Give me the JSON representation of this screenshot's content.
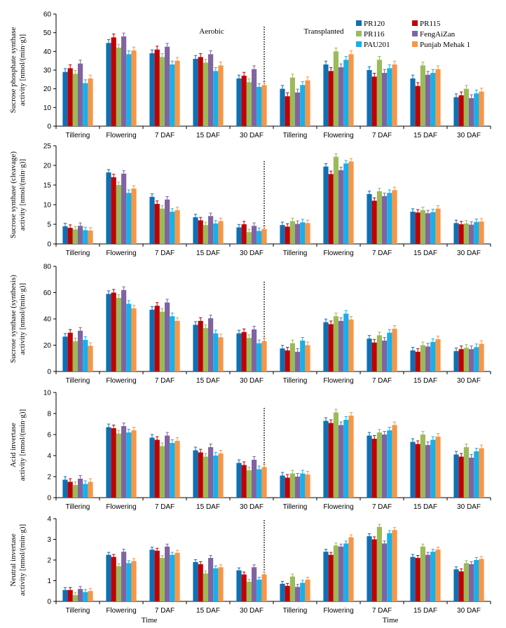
{
  "chart_data": [
    {
      "type": "bar",
      "ylabel": "Sucrose phosphate synthase activity [nmol/(min·g)]",
      "ylim": [
        0,
        60
      ],
      "yticks": [
        0,
        10,
        20,
        30,
        40,
        50,
        60
      ],
      "condition_labels": [
        "Aerobic",
        "Transplanted"
      ],
      "xlabel": "",
      "series": [
        {
          "name": "PR120",
          "values": [
            29,
            44.5,
            39,
            36,
            25.5,
            20,
            33,
            30,
            25.5,
            15.5
          ]
        },
        {
          "name": "PR115",
          "values": [
            31,
            47.5,
            41,
            37,
            27,
            16,
            29.5,
            26.5,
            21.5,
            16.5
          ]
        },
        {
          "name": "PR116",
          "values": [
            28,
            42,
            37,
            34,
            23.5,
            26,
            40,
            35.5,
            32.5,
            20
          ]
        },
        {
          "name": "FengAiZan",
          "values": [
            33.5,
            48,
            42.5,
            38.5,
            30.5,
            18,
            31.5,
            28.5,
            27.5,
            15
          ]
        },
        {
          "name": "PAU201",
          "values": [
            23,
            38.5,
            33,
            29.5,
            21,
            22,
            35.5,
            31,
            28.5,
            17.5
          ]
        },
        {
          "name": "Punjab Mehak 1",
          "values": [
            25.5,
            40.5,
            35,
            32.5,
            22,
            24.5,
            38.5,
            33,
            30.5,
            18.5
          ]
        }
      ]
    },
    {
      "type": "bar",
      "ylabel": "Sucrose synthase (cleavage) activity [nmol/(min·g)]",
      "ylim": [
        0,
        25
      ],
      "yticks": [
        0,
        5,
        10,
        15,
        20,
        25
      ],
      "condition_labels": [],
      "xlabel": "",
      "series": [
        {
          "name": "PR120",
          "values": [
            4.5,
            18.2,
            12,
            6.8,
            4.2,
            4.8,
            19.7,
            12.7,
            8.2,
            5.3
          ]
        },
        {
          "name": "PR115",
          "values": [
            4.1,
            17,
            10.2,
            6,
            5,
            4.4,
            17.8,
            11,
            8,
            5
          ]
        },
        {
          "name": "PR116",
          "values": [
            3.7,
            15,
            9,
            4.8,
            3,
            5.8,
            22.2,
            13.4,
            8.6,
            5.2
          ]
        },
        {
          "name": "FengAiZan",
          "values": [
            4.6,
            17.9,
            11.3,
            7.1,
            4.6,
            5.1,
            18.8,
            12.2,
            7.8,
            4.9
          ]
        },
        {
          "name": "PAU201",
          "values": [
            3.5,
            13,
            8.2,
            5.2,
            3.3,
            5.5,
            20.5,
            13,
            8.1,
            5.6
          ]
        },
        {
          "name": "Punjab Mehak 1",
          "values": [
            3.4,
            14.1,
            8.6,
            5.8,
            3.8,
            5.3,
            21,
            13.7,
            9,
            5.7
          ]
        }
      ]
    },
    {
      "type": "bar",
      "ylabel": "Sucrose synthase (synthesis) activity [nmol/(min·g)]",
      "ylim": [
        0,
        80
      ],
      "yticks": [
        0,
        20,
        40,
        60,
        80
      ],
      "condition_labels": [],
      "xlabel": "",
      "series": [
        {
          "name": "PR120",
          "values": [
            26.5,
            59,
            47,
            35.5,
            29,
            17.5,
            37.5,
            25,
            16,
            15.5
          ]
        },
        {
          "name": "PR115",
          "values": [
            29.5,
            60,
            50,
            38.5,
            30,
            16,
            36,
            22,
            15,
            17
          ]
        },
        {
          "name": "PR116",
          "values": [
            23,
            56,
            45.5,
            33,
            25.5,
            21.5,
            42,
            27.5,
            20,
            18
          ]
        },
        {
          "name": "FengAiZan",
          "values": [
            31,
            62,
            52.5,
            40.5,
            32,
            15,
            38.5,
            23.5,
            19,
            17
          ]
        },
        {
          "name": "PAU201",
          "values": [
            24,
            51.5,
            42,
            29,
            21.5,
            23.5,
            44,
            29.5,
            22.5,
            18.5
          ]
        },
        {
          "name": "Punjab Mehak 1",
          "values": [
            19.5,
            48,
            38.5,
            26,
            23,
            20,
            39.5,
            32.5,
            24.5,
            21
          ]
        }
      ]
    },
    {
      "type": "bar",
      "ylabel": "Acid invertase activity [nmol/(min·g)]",
      "ylim": [
        0,
        10
      ],
      "yticks": [
        0,
        2,
        4,
        6,
        8,
        10
      ],
      "condition_labels": [],
      "xlabel": "",
      "series": [
        {
          "name": "PR120",
          "values": [
            1.7,
            6.7,
            5.7,
            4.5,
            3.3,
            2.1,
            7.3,
            5.9,
            5.3,
            4.1
          ]
        },
        {
          "name": "PR115",
          "values": [
            1.5,
            6.6,
            5.5,
            4.3,
            3.1,
            1.9,
            7.1,
            5.6,
            5.1,
            3.9
          ]
        },
        {
          "name": "PR116",
          "values": [
            1.2,
            6.1,
            4.9,
            3.9,
            2.6,
            2.3,
            8.1,
            6.2,
            6.0,
            4.8
          ]
        },
        {
          "name": "FengAiZan",
          "values": [
            1.8,
            6.8,
            5.9,
            4.8,
            3.6,
            2.0,
            6.9,
            6.0,
            5.0,
            3.8
          ]
        },
        {
          "name": "PAU201",
          "values": [
            1.3,
            6.2,
            5.2,
            4.0,
            2.7,
            2.3,
            7.4,
            6.4,
            5.5,
            4.4
          ]
        },
        {
          "name": "Punjab Mehak 1",
          "values": [
            1.5,
            6.4,
            5.4,
            4.2,
            2.9,
            2.2,
            7.8,
            6.9,
            5.8,
            4.7
          ]
        }
      ]
    },
    {
      "type": "bar",
      "ylabel": "Neutral invertase activity [nmol/(min·g)]",
      "ylim": [
        0,
        4
      ],
      "yticks": [
        0,
        1,
        2,
        3,
        4
      ],
      "condition_labels": [],
      "xlabel": "Time",
      "series": [
        {
          "name": "PR120",
          "values": [
            0.55,
            2.25,
            2.5,
            1.9,
            1.5,
            0.85,
            2.4,
            3.15,
            2.15,
            1.55
          ]
        },
        {
          "name": "PR115",
          "values": [
            0.55,
            2.15,
            2.45,
            1.8,
            1.3,
            0.75,
            2.25,
            3.0,
            2.1,
            1.45
          ]
        },
        {
          "name": "PR116",
          "values": [
            0.3,
            1.7,
            2.1,
            1.35,
            0.95,
            1.2,
            2.7,
            3.6,
            2.65,
            1.85
          ]
        },
        {
          "name": "FengAiZan",
          "values": [
            0.6,
            2.4,
            2.65,
            2.1,
            1.65,
            0.7,
            2.65,
            2.8,
            2.25,
            1.8
          ]
        },
        {
          "name": "PAU201",
          "values": [
            0.45,
            1.85,
            2.25,
            1.6,
            1.05,
            0.9,
            2.8,
            3.3,
            2.4,
            2.0
          ]
        },
        {
          "name": "Punjab Mehak 1",
          "values": [
            0.5,
            1.95,
            2.35,
            1.65,
            1.3,
            1.05,
            3.1,
            3.45,
            2.5,
            2.05
          ]
        }
      ]
    }
  ],
  "categories": [
    "Tillering",
    "Flowering",
    "7 DAF",
    "15 DAF",
    "30 DAF",
    "Tillering",
    "Flowering",
    "7 DAF",
    "15 DAF",
    "30 DAF"
  ],
  "bottom_labels": [
    "Time",
    "Time"
  ],
  "colors": {
    "PR120": "#0f6fb4",
    "PR115": "#c00000",
    "PR116": "#9bbb59",
    "FengAiZan": "#8064a2",
    "PAU201": "#18b0e8",
    "Punjab Mehak 1": "#f79646"
  }
}
